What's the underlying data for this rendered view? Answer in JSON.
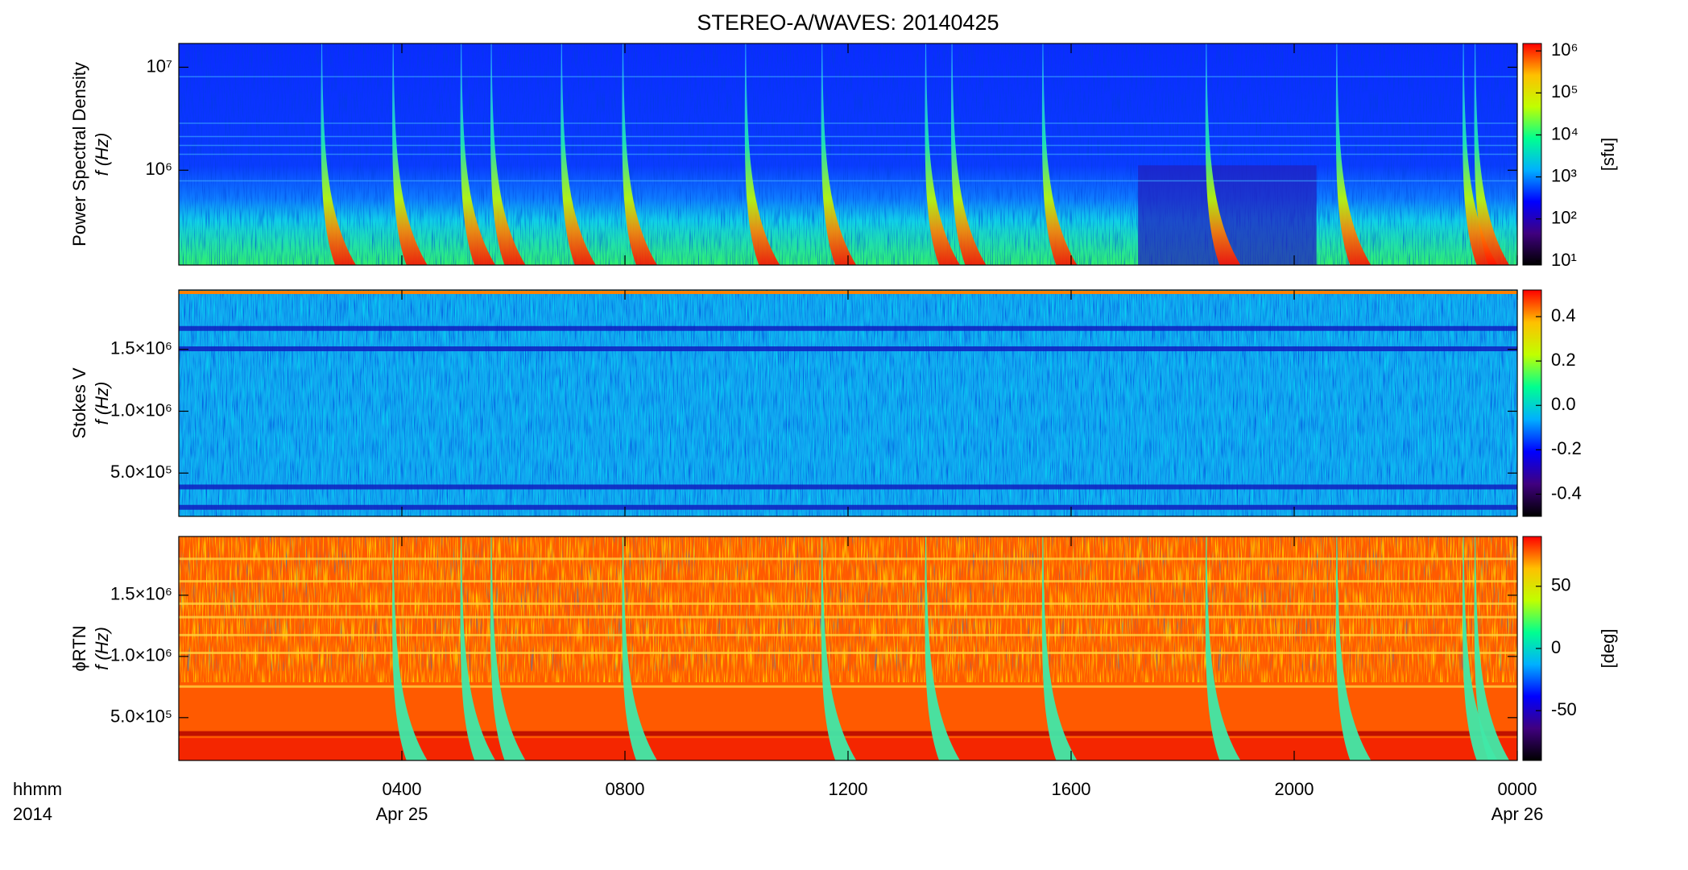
{
  "title": "STEREO-A/WAVES: 20140425",
  "x_axis": {
    "xlim": [
      0,
      24
    ],
    "xticks": [
      {
        "value": 4,
        "label": "0400"
      },
      {
        "value": 8,
        "label": "0800"
      },
      {
        "value": 12,
        "label": "1200"
      },
      {
        "value": 16,
        "label": "1600"
      },
      {
        "value": 20,
        "label": "2000"
      },
      {
        "value": 24,
        "label": "0000"
      }
    ],
    "date_labels": [
      {
        "value": 4,
        "label": "Apr 25"
      },
      {
        "value": 24,
        "label": "Apr 26"
      }
    ],
    "corner_labels": [
      "hhmm",
      "2014"
    ]
  },
  "chart_data": [
    {
      "type": "heatmap",
      "ylabel": [
        "Power Spectral Density",
        "f (Hz)"
      ],
      "ylog": true,
      "ylim": [
        120000,
        17000000
      ],
      "yticks": [
        {
          "value": 1000000,
          "label": "10⁶"
        },
        {
          "value": 10000000,
          "label": "10⁷"
        }
      ],
      "colorbar": {
        "label": "[sfu]",
        "log": true,
        "lim": [
          8,
          1500000
        ],
        "ticks": [
          {
            "value": 10,
            "label": "10¹"
          },
          {
            "value": 100,
            "label": "10²"
          },
          {
            "value": 1000,
            "label": "10³"
          },
          {
            "value": 10000,
            "label": "10⁴"
          },
          {
            "value": 100000,
            "label": "10⁵"
          },
          {
            "value": 1000000,
            "label": "10⁶"
          }
        ]
      },
      "colormap": [
        "#000000",
        "#40007f",
        "#0000ff",
        "#00b0ff",
        "#00ff90",
        "#c0ff00",
        "#ffc000",
        "#ff0000"
      ],
      "bursts": [
        2.6,
        3.88,
        5.1,
        5.64,
        6.9,
        8.0,
        10.2,
        11.57,
        13.43,
        13.9,
        15.53,
        18.46,
        20.8,
        23.07,
        23.28
      ]
    },
    {
      "type": "heatmap",
      "ylabel": [
        "Stokes V",
        "f (Hz)"
      ],
      "ylog": false,
      "ylim": [
        150000,
        1980000
      ],
      "yticks": [
        {
          "value": 500000,
          "label": "5.0×10⁵"
        },
        {
          "value": 1000000,
          "label": "1.0×10⁶"
        },
        {
          "value": 1500000,
          "label": "1.5×10⁶"
        }
      ],
      "colorbar": {
        "label": "",
        "log": false,
        "lim": [
          -0.5,
          0.52
        ],
        "ticks": [
          0.4,
          0.2,
          {
            "value": 0,
            "label": "0.0"
          },
          -0.2,
          -0.4
        ]
      },
      "colormap": [
        "#000000",
        "#40007f",
        "#0000ff",
        "#00b0ff",
        "#00ff90",
        "#c0ff00",
        "#ffc000",
        "#ff0000"
      ],
      "bursts": []
    },
    {
      "type": "heatmap",
      "ylabel": [
        "ϕRTN",
        "f (Hz)"
      ],
      "ylog": false,
      "ylim": [
        150000,
        1980000
      ],
      "yticks": [
        {
          "value": 500000,
          "label": "5.0×10⁵"
        },
        {
          "value": 1000000,
          "label": "1.0×10⁶"
        },
        {
          "value": 1500000,
          "label": "1.5×10⁶"
        }
      ],
      "colorbar": {
        "label": "[deg]",
        "log": false,
        "lim": [
          -90,
          90
        ],
        "ticks": [
          50,
          0,
          -50
        ]
      },
      "colormap": [
        "#000000",
        "#40007f",
        "#0000ff",
        "#00b0ff",
        "#00ff90",
        "#c0ff00",
        "#ffc000",
        "#ff0000"
      ],
      "bursts": [
        3.88,
        5.1,
        5.64,
        8.0,
        11.57,
        13.43,
        15.53,
        18.46,
        20.8,
        23.07,
        23.28
      ]
    }
  ]
}
